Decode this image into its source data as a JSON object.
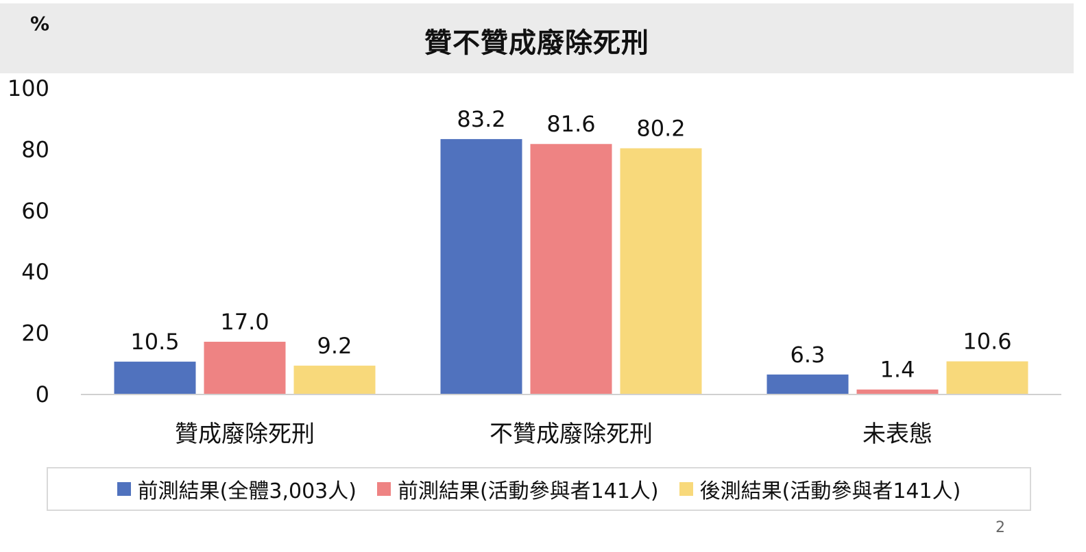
{
  "header": {
    "unit": "%",
    "title": "贊不贊成廢除死刑"
  },
  "chart_data": {
    "type": "bar",
    "title": "贊不贊成廢除死刑",
    "ylabel": "%",
    "xlabel": "",
    "ylim": [
      0,
      100
    ],
    "yticks": [
      "0",
      "20",
      "40",
      "60",
      "80",
      "100"
    ],
    "grid": false,
    "legend_position": "bottom",
    "categories": [
      "贊成廢除死刑",
      "不贊成廢除死刑",
      "未表態"
    ],
    "series": [
      {
        "name": "前測結果(全體3,003人)",
        "color": "#5072BE",
        "values": [
          10.5,
          83.2,
          6.3
        ],
        "labels": [
          "10.5",
          "83.2",
          "6.3"
        ]
      },
      {
        "name": "前測結果(活動參與者141人)",
        "color": "#EE8383",
        "values": [
          17.0,
          81.6,
          1.4
        ],
        "labels": [
          "17.0",
          "81.6",
          "1.4"
        ]
      },
      {
        "name": "後測結果(活動參與者141人)",
        "color": "#F8D97B",
        "values": [
          9.2,
          80.2,
          10.6
        ],
        "labels": [
          "9.2",
          "80.2",
          "10.6"
        ]
      }
    ]
  },
  "page_number": "2"
}
